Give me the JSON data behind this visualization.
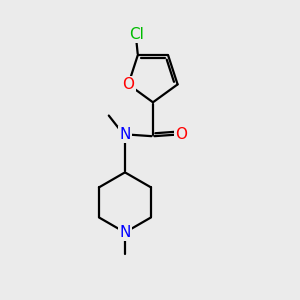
{
  "background_color": "#ebebeb",
  "atom_colors": {
    "C": "#000000",
    "N": "#0000ff",
    "O": "#ff0000",
    "Cl": "#00bb00"
  },
  "font_size": 11,
  "figsize": [
    3.0,
    3.0
  ],
  "dpi": 100,
  "lw": 1.6
}
